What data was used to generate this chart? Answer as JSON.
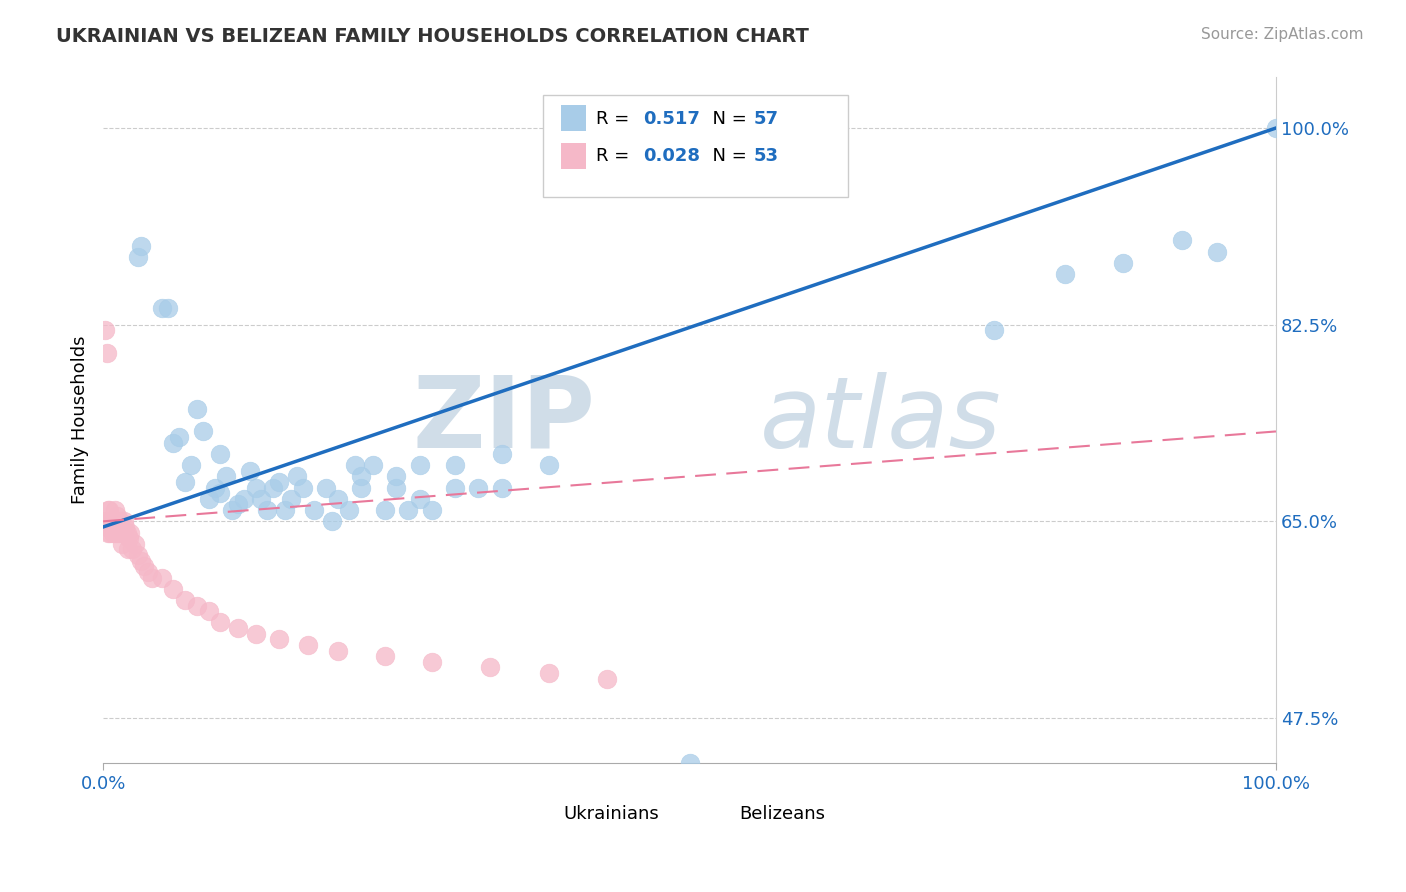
{
  "title": "UKRAINIAN VS BELIZEAN FAMILY HOUSEHOLDS CORRELATION CHART",
  "source": "Source: ZipAtlas.com",
  "ylabel": "Family Households",
  "xlim": [
    0,
    1
  ],
  "ylim": [
    0.435,
    1.045
  ],
  "yticks": [
    0.475,
    0.65,
    0.825,
    1.0
  ],
  "ytick_labels": [
    "47.5%",
    "65.0%",
    "82.5%",
    "100.0%"
  ],
  "xticks": [
    0.0,
    1.0
  ],
  "xtick_labels": [
    "0.0%",
    "100.0%"
  ],
  "legend_R1": "0.517",
  "legend_N1": "57",
  "legend_R2": "0.028",
  "legend_N2": "53",
  "blue_color": "#a8cce8",
  "pink_color": "#f5b8c8",
  "blue_line_color": "#1f6dbf",
  "pink_line_color": "#e8789a",
  "background_color": "#ffffff",
  "watermark_zip": "ZIP",
  "watermark_atlas": "atlas",
  "ukrainians_x": [
    0.03,
    0.032,
    0.05,
    0.055,
    0.06,
    0.065,
    0.07,
    0.075,
    0.08,
    0.085,
    0.09,
    0.095,
    0.1,
    0.1,
    0.105,
    0.11,
    0.115,
    0.12,
    0.125,
    0.13,
    0.135,
    0.14,
    0.145,
    0.15,
    0.155,
    0.16,
    0.165,
    0.17,
    0.18,
    0.19,
    0.195,
    0.2,
    0.21,
    0.215,
    0.22,
    0.23,
    0.24,
    0.25,
    0.26,
    0.27,
    0.28,
    0.3,
    0.32,
    0.34,
    0.22,
    0.25,
    0.27,
    0.3,
    0.34,
    0.38,
    0.5,
    0.76,
    0.82,
    0.87,
    0.92,
    0.95,
    1.0
  ],
  "ukrainians_y": [
    0.885,
    0.895,
    0.84,
    0.84,
    0.72,
    0.725,
    0.685,
    0.7,
    0.75,
    0.73,
    0.67,
    0.68,
    0.675,
    0.71,
    0.69,
    0.66,
    0.665,
    0.67,
    0.695,
    0.68,
    0.67,
    0.66,
    0.68,
    0.685,
    0.66,
    0.67,
    0.69,
    0.68,
    0.66,
    0.68,
    0.65,
    0.67,
    0.66,
    0.7,
    0.68,
    0.7,
    0.66,
    0.68,
    0.66,
    0.67,
    0.66,
    0.68,
    0.68,
    0.68,
    0.69,
    0.69,
    0.7,
    0.7,
    0.71,
    0.7,
    0.435,
    0.82,
    0.87,
    0.88,
    0.9,
    0.89,
    1.0
  ],
  "belizeans_x": [
    0.002,
    0.003,
    0.004,
    0.004,
    0.005,
    0.005,
    0.006,
    0.007,
    0.008,
    0.008,
    0.009,
    0.01,
    0.01,
    0.011,
    0.012,
    0.012,
    0.013,
    0.014,
    0.015,
    0.015,
    0.016,
    0.017,
    0.018,
    0.019,
    0.02,
    0.021,
    0.022,
    0.023,
    0.025,
    0.027,
    0.03,
    0.032,
    0.035,
    0.038,
    0.042,
    0.05,
    0.06,
    0.07,
    0.08,
    0.09,
    0.1,
    0.115,
    0.13,
    0.15,
    0.175,
    0.2,
    0.24,
    0.28,
    0.33,
    0.38,
    0.43,
    0.002,
    0.003
  ],
  "belizeans_y": [
    0.65,
    0.645,
    0.66,
    0.64,
    0.66,
    0.645,
    0.64,
    0.65,
    0.645,
    0.64,
    0.65,
    0.66,
    0.645,
    0.64,
    0.655,
    0.645,
    0.64,
    0.65,
    0.64,
    0.645,
    0.63,
    0.64,
    0.65,
    0.645,
    0.64,
    0.625,
    0.635,
    0.64,
    0.625,
    0.63,
    0.62,
    0.615,
    0.61,
    0.605,
    0.6,
    0.6,
    0.59,
    0.58,
    0.575,
    0.57,
    0.56,
    0.555,
    0.55,
    0.545,
    0.54,
    0.535,
    0.53,
    0.525,
    0.52,
    0.515,
    0.51,
    0.82,
    0.8
  ],
  "blue_trend_x": [
    0.0,
    1.0
  ],
  "blue_trend_y": [
    0.645,
    1.0
  ],
  "pink_trend_x": [
    0.0,
    1.0
  ],
  "pink_trend_y": [
    0.65,
    0.73
  ]
}
